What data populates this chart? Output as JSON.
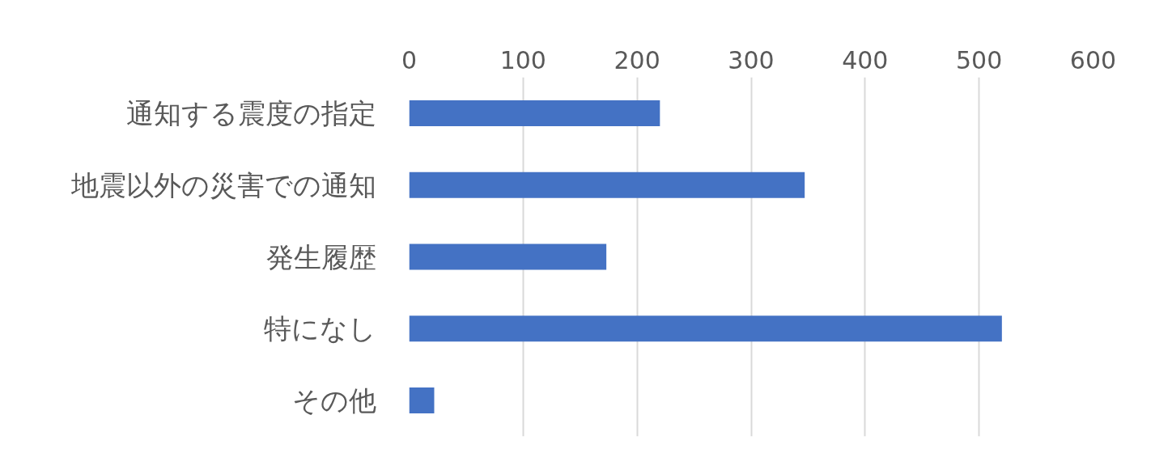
{
  "chart_data": {
    "type": "bar",
    "orientation": "horizontal",
    "categories": [
      "通知する震度の指定",
      "地震以外の災害での通知",
      "発生履歴",
      "特になし",
      "その他"
    ],
    "values": [
      220,
      347,
      173,
      520,
      22
    ],
    "color": "#4472c4",
    "xlim": [
      0,
      600
    ],
    "xticks": [
      0,
      100,
      200,
      300,
      400,
      500,
      600
    ],
    "grid": "x"
  }
}
